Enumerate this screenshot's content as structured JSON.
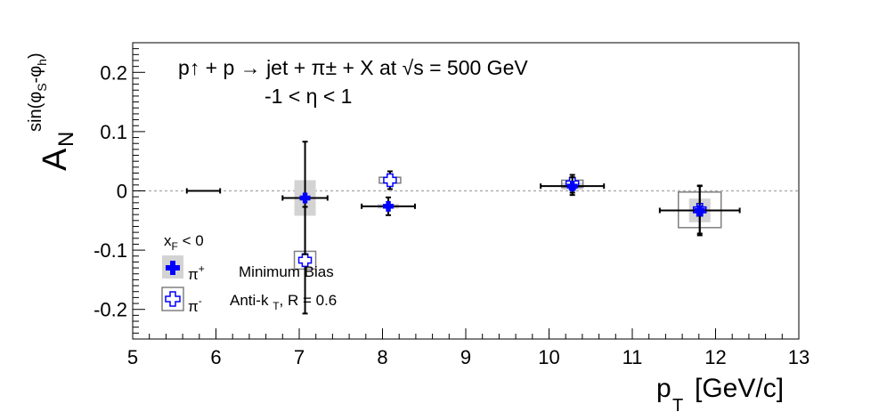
{
  "chart_data": {
    "type": "scatter",
    "title_line1": "p↑ + p → jet + π± + X at √s = 500 GeV",
    "title_line2": "-1 < η < 1",
    "xlabel": "p_T [GeV/c]",
    "ylabel": "A_N^{sin(φS-φh)}",
    "xlim": [
      5,
      13
    ],
    "ylim": [
      -0.25,
      0.25
    ],
    "x_ticks": [
      5,
      6,
      7,
      8,
      9,
      10,
      11,
      12,
      13
    ],
    "x_tick_labels": [
      "5",
      "6",
      "7",
      "8",
      "9",
      "10",
      "11",
      "12",
      "13"
    ],
    "y_ticks": [
      -0.2,
      -0.1,
      0,
      0.1,
      0.2
    ],
    "y_tick_labels": [
      "-0.2",
      "-0.1",
      "0",
      "0.1",
      "0.2"
    ],
    "zero_line": true,
    "legend": {
      "header": "x_F < 0",
      "entries": [
        {
          "label": "π+",
          "note": "Minimum Bias",
          "marker": "filled-cross"
        },
        {
          "label": "π-",
          "note": "Anti-k T, R = 0.6",
          "marker": "open-cross"
        }
      ]
    },
    "series": [
      {
        "name": "π+",
        "color": "#0000ff",
        "box_color": "#d3d3d3",
        "points": [
          {
            "x": 5.85,
            "y": 0.0,
            "xerr": 0.2,
            "yerr": 0.0,
            "marker": false
          },
          {
            "x": 7.07,
            "y": -0.012,
            "xerr": 0.27,
            "yerr": 0.095,
            "sys": 0.03
          },
          {
            "x": 8.07,
            "y": -0.026,
            "xerr": 0.32,
            "yerr": 0.015,
            "sys": 0.004
          },
          {
            "x": 10.28,
            "y": 0.008,
            "xerr": 0.38,
            "yerr": 0.015,
            "sys": 0.006
          },
          {
            "x": 11.81,
            "y": -0.033,
            "xerr": 0.48,
            "yerr": 0.042,
            "sys": 0.02
          }
        ]
      },
      {
        "name": "π-",
        "color": "#0000ff",
        "box_color": "#808080",
        "points": [
          {
            "x": 7.07,
            "y": -0.117,
            "xerr": 0.0,
            "yerr": 0.09,
            "sys": 0.015
          },
          {
            "x": 8.09,
            "y": 0.018,
            "xerr": 0.0,
            "yerr": 0.015,
            "sys": 0.005
          },
          {
            "x": 10.28,
            "y": 0.012,
            "xerr": 0.0,
            "yerr": 0.015,
            "sys": 0.006
          },
          {
            "x": 11.81,
            "y": -0.032,
            "xerr": 0.0,
            "yerr": 0.04,
            "sys": 0.03
          }
        ]
      }
    ]
  }
}
